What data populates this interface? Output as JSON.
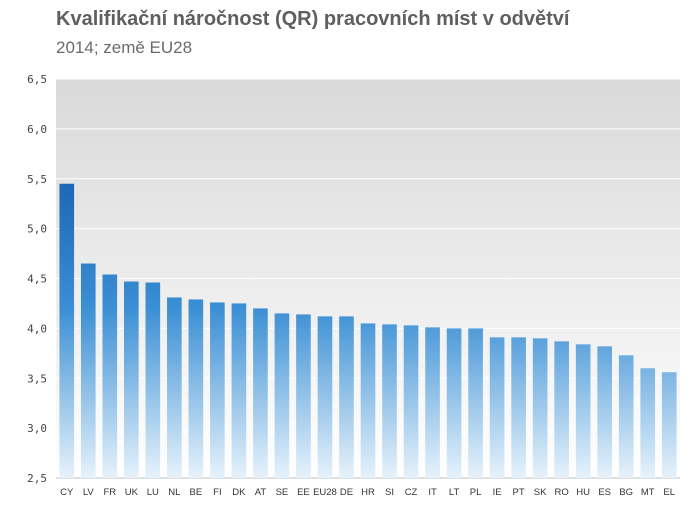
{
  "title": "Kvalifikační náročnost (QR)  pracovních míst v odvětví",
  "subtitle": "2014; země EU28",
  "chart_data": {
    "type": "bar",
    "title": "Kvalifikační náročnost (QR)  pracovních míst v odvětví",
    "subtitle": "2014; země EU28",
    "xlabel": "",
    "ylabel": "",
    "ylim": [
      2.5,
      6.5
    ],
    "yticks": [
      "2,5",
      "3,0",
      "3,5",
      "4,0",
      "4,5",
      "5,0",
      "5,5",
      "6,0",
      "6,5"
    ],
    "grid": true,
    "categories": [
      "CY",
      "LV",
      "FR",
      "UK",
      "LU",
      "NL",
      "BE",
      "FI",
      "DK",
      "AT",
      "SE",
      "EE",
      "EU28",
      "DE",
      "HR",
      "SI",
      "CZ",
      "IT",
      "LT",
      "PL",
      "IE",
      "PT",
      "SK",
      "RO",
      "HU",
      "ES",
      "BG",
      "MT",
      "EL"
    ],
    "values": [
      5.45,
      4.65,
      4.54,
      4.47,
      4.46,
      4.31,
      4.29,
      4.26,
      4.25,
      4.2,
      4.15,
      4.14,
      4.12,
      4.12,
      4.05,
      4.04,
      4.03,
      4.01,
      4.0,
      4.0,
      3.91,
      3.91,
      3.9,
      3.87,
      3.84,
      3.82,
      3.73,
      3.6,
      3.56
    ],
    "colors": {
      "bar_top": "#1a63b0",
      "bar_mid": "#3b8fd4",
      "bar_bottom": "#e6f2fb",
      "plot_bg_top": "#d9d9d9",
      "plot_bg_bottom": "#ffffff",
      "gridline": "#ffffff"
    }
  }
}
